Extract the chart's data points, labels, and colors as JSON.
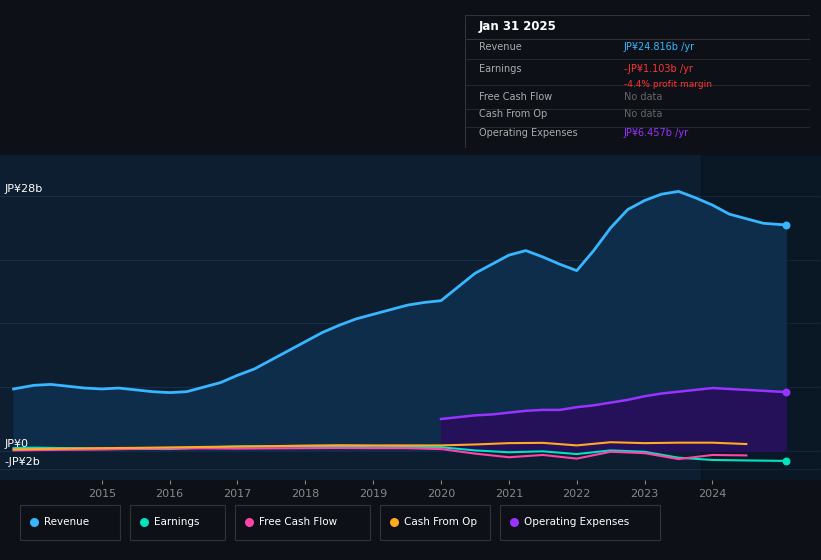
{
  "bg_color": "#0d1117",
  "chart_bg": "#0d1e30",
  "grid_color": "#1a3050",
  "title_box": {
    "date": "Jan 31 2025",
    "rows": [
      {
        "label": "Revenue",
        "value": "JP¥24.816b /yr",
        "value_color": "#38b6ff",
        "extra": null,
        "extra_color": null
      },
      {
        "label": "Earnings",
        "value": "-JP¥1.103b /yr",
        "value_color": "#ff3333",
        "extra": "-4.4% profit margin",
        "extra_color": "#ff3333"
      },
      {
        "label": "Free Cash Flow",
        "value": "No data",
        "value_color": "#666666",
        "extra": null,
        "extra_color": null
      },
      {
        "label": "Cash From Op",
        "value": "No data",
        "value_color": "#666666",
        "extra": null,
        "extra_color": null
      },
      {
        "label": "Operating Expenses",
        "value": "JP¥6.457b /yr",
        "value_color": "#9933ff",
        "extra": null,
        "extra_color": null
      }
    ]
  },
  "x_ticks": [
    2015,
    2016,
    2017,
    2018,
    2019,
    2020,
    2021,
    2022,
    2023,
    2024
  ],
  "ylim": [
    -3.2,
    32.5
  ],
  "xlim": [
    2013.5,
    2025.6
  ],
  "revenue_x": [
    2013.7,
    2014.0,
    2014.25,
    2014.5,
    2014.75,
    2015.0,
    2015.25,
    2015.5,
    2015.75,
    2016.0,
    2016.25,
    2016.5,
    2016.75,
    2017.0,
    2017.25,
    2017.5,
    2017.75,
    2018.0,
    2018.25,
    2018.5,
    2018.75,
    2019.0,
    2019.25,
    2019.5,
    2019.75,
    2020.0,
    2020.25,
    2020.5,
    2020.75,
    2021.0,
    2021.25,
    2021.5,
    2021.75,
    2022.0,
    2022.25,
    2022.5,
    2022.75,
    2023.0,
    2023.25,
    2023.5,
    2023.75,
    2024.0,
    2024.25,
    2024.5,
    2024.75,
    2025.08
  ],
  "revenue_y": [
    6.8,
    7.2,
    7.3,
    7.1,
    6.9,
    6.8,
    6.9,
    6.7,
    6.5,
    6.4,
    6.5,
    7.0,
    7.5,
    8.3,
    9.0,
    10.0,
    11.0,
    12.0,
    13.0,
    13.8,
    14.5,
    15.0,
    15.5,
    16.0,
    16.3,
    16.5,
    18.0,
    19.5,
    20.5,
    21.5,
    22.0,
    21.3,
    20.5,
    19.8,
    22.0,
    24.5,
    26.5,
    27.5,
    28.2,
    28.5,
    27.8,
    27.0,
    26.0,
    25.5,
    25.0,
    24.816
  ],
  "earnings_x": [
    2013.7,
    2014.0,
    2014.5,
    2015.0,
    2015.5,
    2016.0,
    2016.5,
    2017.0,
    2017.5,
    2018.0,
    2018.5,
    2019.0,
    2019.5,
    2020.0,
    2020.5,
    2021.0,
    2021.5,
    2022.0,
    2022.5,
    2023.0,
    2023.5,
    2024.0,
    2024.5,
    2025.08
  ],
  "earnings_y": [
    0.3,
    0.35,
    0.3,
    0.25,
    0.22,
    0.2,
    0.38,
    0.48,
    0.5,
    0.52,
    0.48,
    0.4,
    0.42,
    0.4,
    0.05,
    -0.15,
    -0.05,
    -0.35,
    0.05,
    -0.1,
    -0.75,
    -1.0,
    -1.05,
    -1.103
  ],
  "fcf_x": [
    2013.7,
    2014.0,
    2014.5,
    2015.0,
    2015.5,
    2016.0,
    2016.5,
    2017.0,
    2017.5,
    2018.0,
    2018.5,
    2019.0,
    2019.5,
    2020.0,
    2020.5,
    2021.0,
    2021.5,
    2022.0,
    2022.5,
    2023.0,
    2023.5,
    2024.0,
    2024.5
  ],
  "fcf_y": [
    0.05,
    0.08,
    0.12,
    0.15,
    0.22,
    0.25,
    0.28,
    0.25,
    0.28,
    0.3,
    0.32,
    0.3,
    0.3,
    0.2,
    -0.3,
    -0.7,
    -0.45,
    -0.85,
    -0.1,
    -0.25,
    -0.9,
    -0.45,
    -0.5
  ],
  "cashop_x": [
    2013.7,
    2014.0,
    2014.5,
    2015.0,
    2015.5,
    2016.0,
    2016.5,
    2017.0,
    2017.5,
    2018.0,
    2018.5,
    2019.0,
    2019.5,
    2020.0,
    2020.5,
    2021.0,
    2021.5,
    2022.0,
    2022.5,
    2023.0,
    2023.5,
    2024.0,
    2024.5
  ],
  "cashop_y": [
    0.15,
    0.2,
    0.25,
    0.3,
    0.33,
    0.38,
    0.43,
    0.48,
    0.52,
    0.58,
    0.62,
    0.6,
    0.6,
    0.6,
    0.7,
    0.85,
    0.88,
    0.6,
    0.95,
    0.85,
    0.9,
    0.9,
    0.75
  ],
  "opex_x": [
    2020.0,
    2020.25,
    2020.5,
    2020.75,
    2021.0,
    2021.25,
    2021.5,
    2021.75,
    2022.0,
    2022.25,
    2022.5,
    2022.75,
    2023.0,
    2023.25,
    2023.5,
    2023.75,
    2024.0,
    2024.25,
    2024.5,
    2024.75,
    2025.08
  ],
  "opex_y": [
    3.5,
    3.7,
    3.9,
    4.0,
    4.2,
    4.4,
    4.5,
    4.5,
    4.8,
    5.0,
    5.3,
    5.6,
    6.0,
    6.3,
    6.5,
    6.7,
    6.9,
    6.8,
    6.7,
    6.6,
    6.457
  ],
  "revenue_color": "#38b6ff",
  "revenue_fill": "#0d2d4a",
  "earnings_color": "#00e5c0",
  "fcf_color": "#ff44aa",
  "cashop_color": "#ffaa22",
  "opex_color": "#9933ff",
  "opex_fill": "#25105a",
  "legend": [
    {
      "label": "Revenue",
      "color": "#38b6ff"
    },
    {
      "label": "Earnings",
      "color": "#00e5c0"
    },
    {
      "label": "Free Cash Flow",
      "color": "#ff44aa"
    },
    {
      "label": "Cash From Op",
      "color": "#ffaa22"
    },
    {
      "label": "Operating Expenses",
      "color": "#9933ff"
    }
  ]
}
